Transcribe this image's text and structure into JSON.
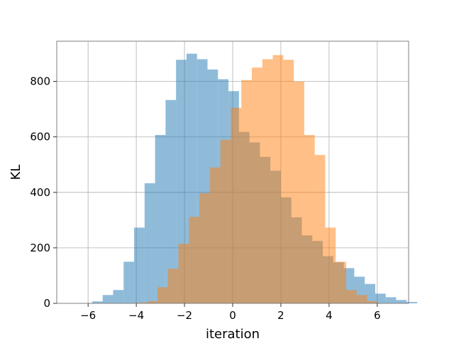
{
  "chart_data": {
    "type": "bar",
    "title": "",
    "xlabel": "iteration",
    "ylabel": "KL",
    "xlim": [
      -7.3,
      7.3
    ],
    "ylim": [
      0,
      945
    ],
    "xticks": [
      -6,
      -4,
      -2,
      0,
      2,
      4,
      6
    ],
    "yticks": [
      0,
      200,
      400,
      600,
      800
    ],
    "xtick_labels": [
      "−6",
      "−4",
      "−2",
      "0",
      "2",
      "4",
      "6"
    ],
    "ytick_labels": [
      "0",
      "200",
      "400",
      "600",
      "800"
    ],
    "grid": true,
    "legend": "none",
    "bin_width": 0.435,
    "series": [
      {
        "color": "#1f77b4",
        "alpha": 0.5,
        "bin_start": -5.83,
        "values": [
          7,
          30,
          48,
          150,
          273,
          433,
          607,
          733,
          878,
          900,
          880,
          843,
          808,
          765,
          618,
          580,
          528,
          478,
          382,
          310,
          245,
          225,
          170,
          148,
          127,
          96,
          70,
          35,
          22,
          12,
          5
        ]
      },
      {
        "color": "#ff7f0e",
        "alpha": 0.5,
        "bin_start": -3.99,
        "values": [
          3,
          8,
          58,
          125,
          215,
          312,
          397,
          490,
          590,
          705,
          805,
          850,
          880,
          895,
          878,
          800,
          607,
          535,
          273,
          150,
          48,
          30,
          8
        ]
      }
    ]
  }
}
